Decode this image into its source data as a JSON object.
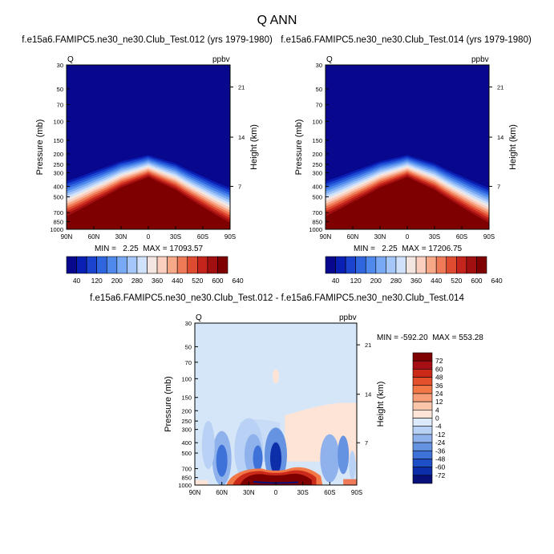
{
  "title": "Q ANN",
  "chart_data": [
    {
      "type": "contour",
      "title": "f.e15a6.FAMIPC5.ne30_ne30.Club_Test.012 (yrs 1979-1980)",
      "variable": "Q",
      "units": "ppbv",
      "ylabel": "Pressure (mb)",
      "ylabel_right": "Height (km)",
      "x_ticks": [
        "90N",
        "60N",
        "30N",
        "0",
        "30S",
        "60S",
        "90S"
      ],
      "y_ticks": [
        "30",
        "50",
        "70",
        "100",
        "150",
        "200",
        "250",
        "300",
        "400",
        "500",
        "700",
        "850",
        "1000"
      ],
      "y_ticks_right": [
        "21",
        "14",
        "7"
      ],
      "ylim": [
        1000,
        30
      ],
      "stats": "MIN =   2.25  MAX = 17093.57",
      "colorbar_labels": [
        "40",
        "120",
        "200",
        "280",
        "360",
        "440",
        "520",
        "600",
        "640"
      ],
      "moisture_top_profile": {
        "lat": [
          90,
          60,
          30,
          0,
          -30,
          -60,
          -90
        ],
        "pressure_mb": [
          330,
          270,
          220,
          195,
          230,
          300,
          380
        ]
      }
    },
    {
      "type": "contour",
      "title": "f.e15a6.FAMIPC5.ne30_ne30.Club_Test.014 (yrs 1979-1980)",
      "variable": "Q",
      "units": "ppbv",
      "ylabel": "Pressure (mb)",
      "ylabel_right": "Height (km)",
      "x_ticks": [
        "90N",
        "60N",
        "30N",
        "0",
        "30S",
        "60S",
        "90S"
      ],
      "y_ticks": [
        "30",
        "50",
        "70",
        "100",
        "150",
        "200",
        "250",
        "300",
        "400",
        "500",
        "700",
        "850",
        "1000"
      ],
      "y_ticks_right": [
        "21",
        "14",
        "7"
      ],
      "ylim": [
        1000,
        30
      ],
      "stats": "MIN =   2.25  MAX = 17206.75",
      "colorbar_labels": [
        "40",
        "120",
        "200",
        "280",
        "360",
        "440",
        "520",
        "600",
        "640"
      ],
      "moisture_top_profile": {
        "lat": [
          90,
          60,
          30,
          0,
          -30,
          -60,
          -90
        ],
        "pressure_mb": [
          330,
          270,
          220,
          195,
          230,
          300,
          380
        ]
      }
    },
    {
      "type": "contour",
      "title": "f.e15a6.FAMIPC5.ne30_ne30.Club_Test.012 - f.e15a6.FAMIPC5.ne30_ne30.Club_Test.014",
      "variable": "Q",
      "units": "ppbv",
      "ylabel": "Pressure (mb)",
      "ylabel_right": "Height (km)",
      "x_ticks": [
        "90N",
        "60N",
        "30N",
        "0",
        "30S",
        "60S",
        "90S"
      ],
      "y_ticks": [
        "30",
        "50",
        "70",
        "100",
        "150",
        "200",
        "250",
        "300",
        "400",
        "500",
        "700",
        "850",
        "1000"
      ],
      "y_ticks_right": [
        "21",
        "14",
        "7"
      ],
      "ylim": [
        1000,
        30
      ],
      "stats": "MIN = -592.20  MAX = 553.28",
      "colorbar_labels": [
        "72",
        "60",
        "48",
        "36",
        "24",
        "12",
        "4",
        "0",
        "-4",
        "-12",
        "-24",
        "-36",
        "-48",
        "-60",
        "-72"
      ]
    }
  ],
  "colors": {
    "seq": [
      "#08088f",
      "#0a1fb4",
      "#1a43cf",
      "#2f66e0",
      "#4f89ec",
      "#78a9f4",
      "#a4c6f8",
      "#cfe1fb",
      "#f3e6e0",
      "#fbcfbf",
      "#f7a887",
      "#ef7a57",
      "#de4b31",
      "#c4241b",
      "#a10f10",
      "#7f0000"
    ],
    "diff": [
      "#7f0000",
      "#a50f15",
      "#cb2a18",
      "#e5502c",
      "#f27848",
      "#f79e78",
      "#fac6ab",
      "#fde4d6",
      "#ddeafb",
      "#b8d1f4",
      "#8fb2ec",
      "#6593e2",
      "#3e72d8",
      "#1f4fc6",
      "#0c2ea8",
      "#08107a"
    ]
  }
}
